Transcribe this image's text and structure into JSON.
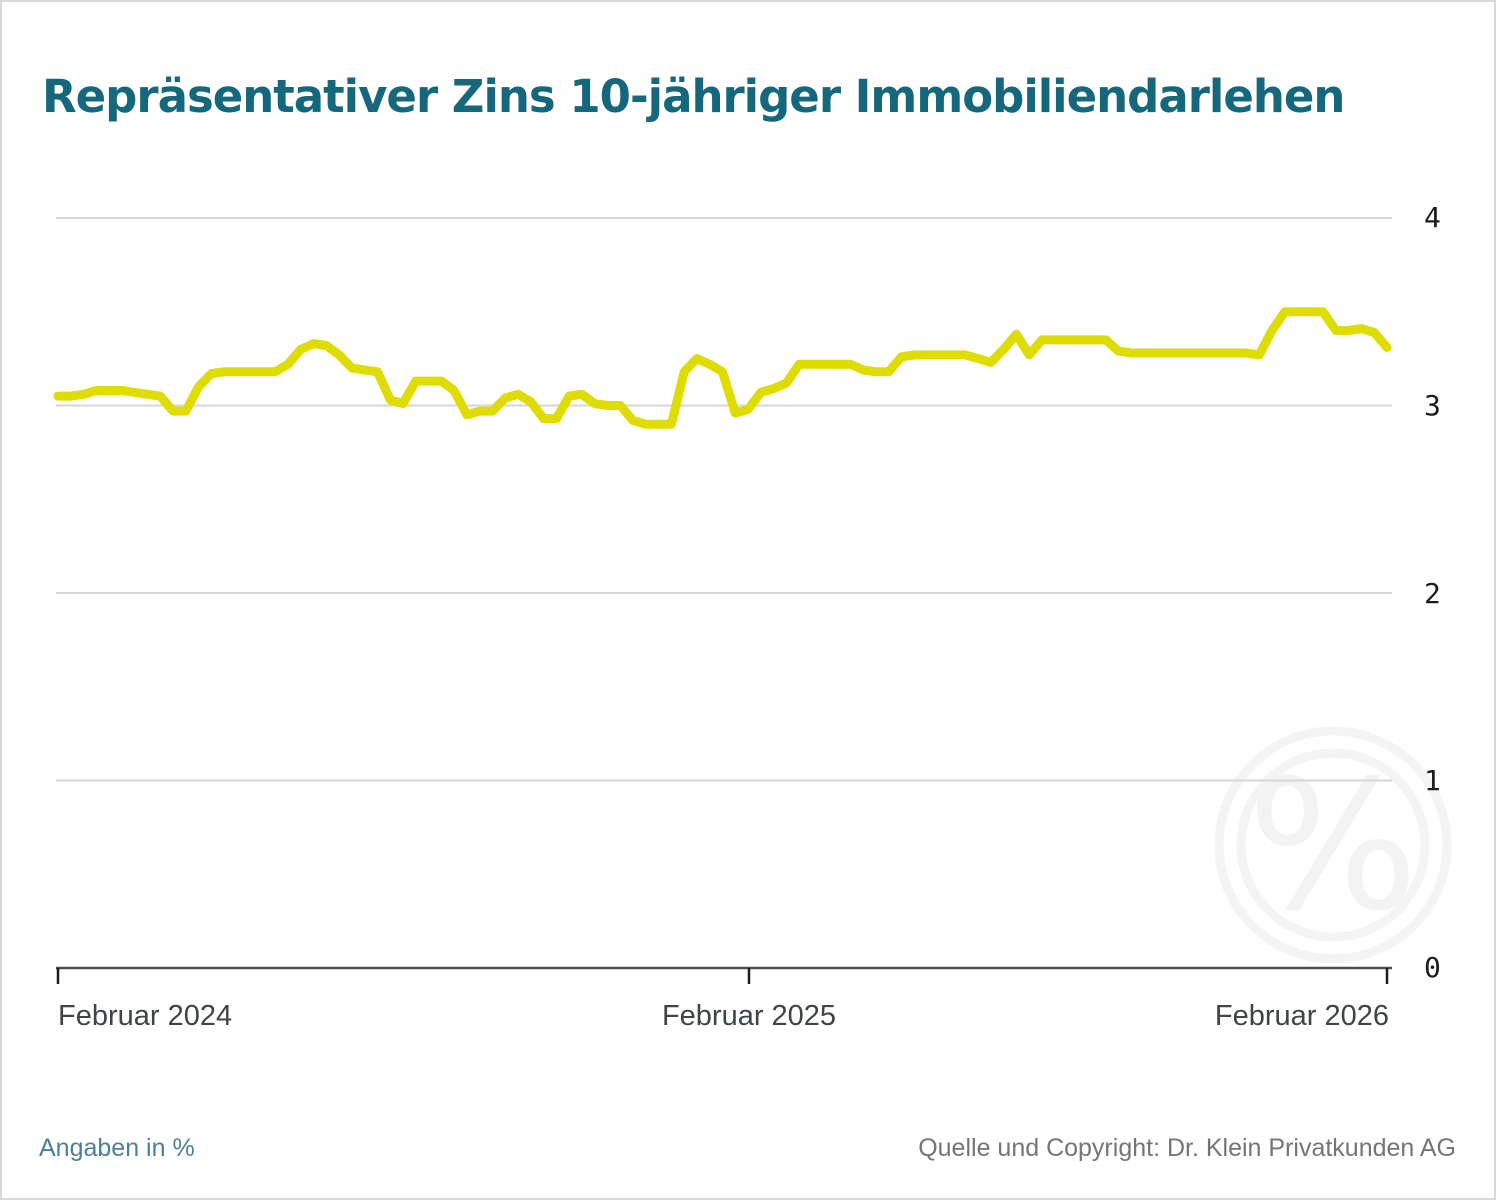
{
  "title": "Repräsentativer Zins 10-jähriger Immobiliendarlehen",
  "footer": {
    "left": "Angaben in %",
    "right": "Quelle und Copyright: Dr. Klein Privatkunden AG"
  },
  "watermark": {
    "symbol": "%"
  },
  "colors": {
    "title": "#15677b",
    "line": "#dedc00",
    "grid": "#d6d6d6",
    "axis": "#4d4d4d",
    "tick": "#1d1d1b",
    "x_label": "#3f4447",
    "footer_left": "#4e7f96",
    "footer_right": "#757575",
    "watermark": "#f3f3f3",
    "border": "#d9d9d9"
  },
  "chart_data": {
    "type": "line",
    "title": "Repräsentativer Zins 10-jähriger Immobiliendarlehen",
    "unit": "%",
    "x_tick_labels": [
      "Februar 2024",
      "Februar 2025",
      "Februar 2026"
    ],
    "y_ticks": [
      0,
      1,
      2,
      3,
      4
    ],
    "y_tick_labels_top_down": [
      "4",
      "3",
      "2",
      "1",
      "0"
    ],
    "ylim": [
      0,
      4
    ],
    "grid": "horizontal",
    "legend": "none",
    "x_unit": "weeks_since_february_2024",
    "series": [
      {
        "name": "Repräsentativer Zins 10-jähriger Immobiliendarlehen",
        "color": "#dedc00",
        "values": [
          3.05,
          3.05,
          3.06,
          3.08,
          3.08,
          3.08,
          3.07,
          3.06,
          3.05,
          2.97,
          2.97,
          3.1,
          3.17,
          3.18,
          3.18,
          3.18,
          3.18,
          3.18,
          3.22,
          3.3,
          3.33,
          3.32,
          3.27,
          3.2,
          3.19,
          3.18,
          3.03,
          3.01,
          3.13,
          3.13,
          3.13,
          3.08,
          2.95,
          2.97,
          2.97,
          3.04,
          3.06,
          3.02,
          2.93,
          2.93,
          3.05,
          3.06,
          3.01,
          3.0,
          3.0,
          2.92,
          2.9,
          2.9,
          2.9,
          3.18,
          3.25,
          3.22,
          3.18,
          2.96,
          2.98,
          3.07,
          3.09,
          3.12,
          3.22,
          3.22,
          3.22,
          3.22,
          3.22,
          3.19,
          3.18,
          3.18,
          3.26,
          3.27,
          3.27,
          3.27,
          3.27,
          3.27,
          3.25,
          3.23,
          3.3,
          3.38,
          3.27,
          3.35,
          3.35,
          3.35,
          3.35,
          3.35,
          3.35,
          3.29,
          3.28,
          3.28,
          3.28,
          3.28,
          3.28,
          3.28,
          3.28,
          3.28,
          3.28,
          3.28,
          3.27,
          3.4,
          3.5,
          3.5,
          3.5,
          3.5,
          3.4,
          3.4,
          3.41,
          3.39,
          3.31
        ]
      }
    ]
  }
}
